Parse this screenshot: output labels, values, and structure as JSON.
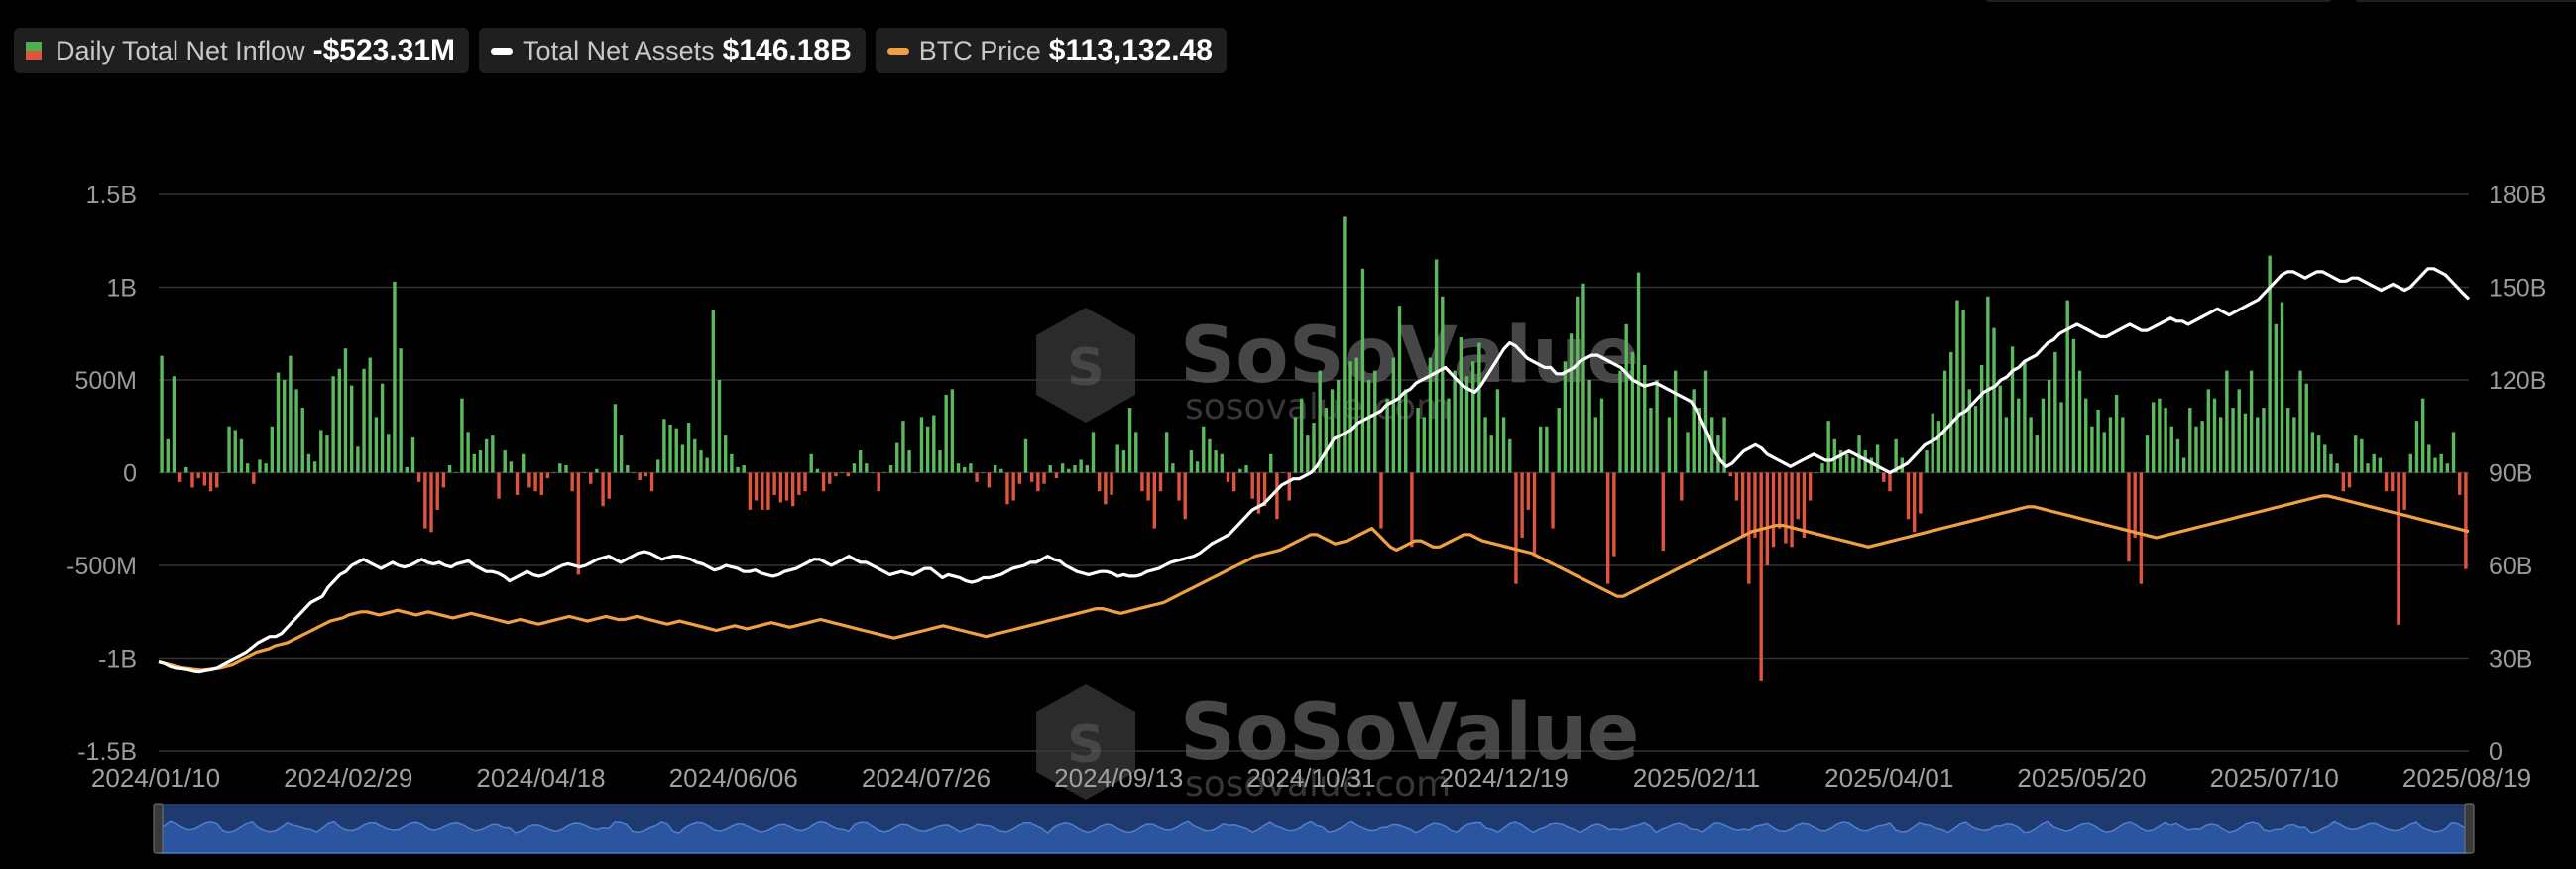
{
  "legend": {
    "items": [
      {
        "label": "Daily Total Net Inflow",
        "value": "-$523.31M"
      },
      {
        "label": "Total Net Assets",
        "value": "$146.18B"
      },
      {
        "label": "BTC Price",
        "value": "$113,132.48"
      }
    ]
  },
  "watermark": {
    "brand": "SoSoValue",
    "site": "sosovalue.com"
  },
  "colors": {
    "positive": "#5cb85c",
    "negative": "#e0533e",
    "assets_line": "#ffffff",
    "btc_line": "#f0a044",
    "grid": "#333333",
    "navigator": "#1f3a6e"
  },
  "chart_data": {
    "type": "bar",
    "left_axis": {
      "ticks": [
        "1.5B",
        "1B",
        "500M",
        "0",
        "-500M",
        "-1B",
        "-1.5B"
      ],
      "ylim": [
        -1.5,
        1.5
      ],
      "unit": "B"
    },
    "right_axis": {
      "ticks": [
        "180B",
        "150B",
        "120B",
        "90B",
        "60B",
        "30B",
        "0"
      ],
      "ylim": [
        0,
        180
      ],
      "unit": "B"
    },
    "x_ticks": [
      "2024/01/10",
      "2024/02/29",
      "2024/04/18",
      "2024/06/06",
      "2024/07/26",
      "2024/09/13",
      "2024/10/31",
      "2024/12/19",
      "2025/02/11",
      "2025/04/01",
      "2025/05/20",
      "2025/07/10",
      "2025/08/19"
    ],
    "series": [
      {
        "name": "Daily Total Net Inflow",
        "axis": "left",
        "kind": "bar",
        "values": [
          0.63,
          0.18,
          0.52,
          -0.05,
          0.03,
          -0.08,
          -0.03,
          -0.07,
          -0.1,
          -0.08,
          0.0,
          0.25,
          0.23,
          0.18,
          0.05,
          -0.06,
          0.07,
          0.05,
          0.25,
          0.54,
          0.5,
          0.63,
          0.45,
          0.35,
          0.1,
          0.06,
          0.23,
          0.2,
          0.52,
          0.56,
          0.67,
          0.47,
          0.14,
          0.56,
          0.62,
          0.3,
          0.48,
          0.21,
          1.03,
          0.67,
          0.03,
          0.19,
          -0.05,
          -0.3,
          -0.32,
          -0.2,
          -0.08,
          0.04,
          0.0,
          0.4,
          0.22,
          0.1,
          0.12,
          0.18,
          0.2,
          -0.14,
          0.12,
          0.06,
          -0.12,
          0.1,
          -0.08,
          -0.1,
          -0.12,
          -0.03,
          0.0,
          0.05,
          0.04,
          -0.1,
          -0.55,
          0.0,
          -0.06,
          0.02,
          -0.18,
          -0.14,
          0.37,
          0.2,
          0.04,
          0.0,
          -0.04,
          -0.02,
          -0.1,
          0.07,
          0.29,
          0.26,
          0.24,
          0.15,
          0.27,
          0.18,
          0.12,
          0.08,
          0.88,
          0.5,
          0.2,
          0.1,
          0.03,
          0.04,
          -0.2,
          -0.15,
          -0.2,
          -0.2,
          -0.12,
          -0.16,
          -0.15,
          -0.18,
          -0.12,
          -0.1,
          0.1,
          0.02,
          -0.1,
          -0.06,
          -0.02,
          0.0,
          -0.02,
          0.05,
          0.12,
          0.05,
          0.0,
          -0.1,
          0.0,
          0.04,
          0.16,
          0.28,
          0.12,
          0.0,
          0.3,
          0.25,
          0.31,
          0.12,
          0.42,
          0.45,
          0.05,
          0.03,
          0.05,
          -0.05,
          0.0,
          -0.08,
          0.04,
          0.02,
          -0.17,
          -0.15,
          -0.06,
          0.18,
          -0.05,
          -0.1,
          -0.06,
          0.04,
          -0.03,
          0.05,
          0.02,
          0.04,
          0.07,
          0.04,
          0.22,
          -0.1,
          -0.17,
          -0.12,
          0.15,
          0.12,
          0.35,
          0.22,
          -0.1,
          -0.15,
          -0.3,
          -0.1,
          0.22,
          0.05,
          -0.15,
          -0.25,
          0.12,
          0.06,
          0.25,
          0.18,
          0.12,
          0.1,
          -0.05,
          -0.1,
          0.02,
          0.04,
          -0.14,
          -0.22,
          -0.18,
          0.1,
          -0.25,
          0.0,
          -0.15,
          0.3,
          0.4,
          0.2,
          0.27,
          0.55,
          0.35,
          0.45,
          0.5,
          1.38,
          0.6,
          0.62,
          1.1,
          0.5,
          0.55,
          -0.3,
          0.4,
          0.62,
          0.9,
          0.45,
          -0.4,
          0.35,
          0.3,
          0.62,
          1.15,
          0.95,
          0.4,
          0.55,
          0.73,
          0.52,
          0.6,
          0.7,
          0.3,
          0.2,
          0.45,
          0.3,
          0.18,
          -0.6,
          -0.35,
          -0.2,
          -0.45,
          0.25,
          0.25,
          -0.3,
          0.35,
          0.6,
          0.75,
          0.95,
          1.02,
          0.5,
          0.3,
          0.4,
          -0.6,
          -0.45,
          0.55,
          0.8,
          0.65,
          1.08,
          0.58,
          0.35,
          0.5,
          -0.42,
          0.3,
          0.55,
          -0.15,
          0.22,
          0.45,
          0.35,
          0.55,
          0.3,
          0.2,
          0.3,
          -0.02,
          -0.15,
          -0.35,
          -0.6,
          -0.35,
          -1.12,
          -0.5,
          -0.4,
          -0.3,
          -0.38,
          -0.4,
          -0.25,
          -0.35,
          -0.15,
          0.0,
          0.05,
          0.28,
          0.18,
          0.12,
          0.1,
          0.08,
          0.2,
          0.12,
          0.08,
          0.15,
          -0.05,
          -0.1,
          0.18,
          0.08,
          -0.25,
          -0.32,
          -0.22,
          0.12,
          0.32,
          0.28,
          0.55,
          0.65,
          0.93,
          0.88,
          0.45,
          0.36,
          0.58,
          0.95,
          0.78,
          0.47,
          0.3,
          0.68,
          0.4,
          0.6,
          0.3,
          0.2,
          0.4,
          0.5,
          0.65,
          0.38,
          0.93,
          0.72,
          0.55,
          0.4,
          0.25,
          0.34,
          0.22,
          0.3,
          0.42,
          0.3,
          -0.48,
          -0.35,
          -0.6,
          0.2,
          0.38,
          0.4,
          0.35,
          0.25,
          0.18,
          0.08,
          0.35,
          0.25,
          0.28,
          0.45,
          0.4,
          0.3,
          0.55,
          0.35,
          0.45,
          0.32,
          0.55,
          0.3,
          0.35,
          1.17,
          0.8,
          0.92,
          0.35,
          0.3,
          0.55,
          0.48,
          0.22,
          0.2,
          0.15,
          0.1,
          0.05,
          -0.1,
          -0.08,
          0.2,
          0.18,
          0.05,
          0.1,
          0.08,
          -0.1,
          -0.1,
          -0.82,
          -0.2,
          0.1,
          0.28,
          0.4,
          0.15,
          0.08,
          0.1,
          0.05,
          0.22,
          -0.12,
          -0.52
        ]
      },
      {
        "name": "Total Net Assets",
        "axis": "right",
        "kind": "line",
        "values": [
          29,
          28.5,
          27.5,
          27,
          26.8,
          26.5,
          26,
          25.8,
          26.2,
          26.5,
          27,
          28,
          29,
          30,
          31,
          32,
          33.5,
          35,
          36,
          37,
          37,
          38,
          40,
          42,
          44,
          46,
          48,
          49,
          50,
          53,
          55,
          57,
          58,
          60,
          61,
          62,
          61,
          60,
          59,
          60,
          61,
          60,
          59.5,
          60,
          61,
          62,
          61,
          60.5,
          61,
          60,
          59.5,
          60.5,
          61,
          61.5,
          60,
          59,
          58,
          58,
          57.5,
          56.5,
          55,
          56,
          57,
          58,
          57,
          56.5,
          57,
          58,
          59,
          60,
          60.5,
          60,
          59.5,
          60,
          61,
          62,
          62.5,
          63,
          62,
          61,
          62,
          63,
          64,
          64.5,
          64,
          63,
          62,
          62.5,
          63,
          63,
          62.5,
          62,
          61,
          60.5,
          59.5,
          58.5,
          59,
          60,
          59.5,
          59,
          58,
          58,
          58.5,
          57.5,
          57,
          56.5,
          57,
          58,
          58.5,
          59,
          60,
          61,
          62,
          62,
          61,
          60,
          61,
          62,
          63,
          62,
          61,
          61,
          60,
          59,
          58,
          57,
          57.5,
          58,
          57.5,
          57,
          58,
          59,
          59,
          57.5,
          56,
          57,
          56.5,
          56,
          55,
          54.5,
          55,
          56,
          56,
          56.5,
          57,
          58,
          59,
          59.5,
          60,
          61,
          61,
          62,
          63,
          62,
          61.5,
          60,
          59,
          58,
          57.5,
          57,
          57.5,
          58,
          58,
          57.5,
          56.5,
          57,
          56.5,
          56.5,
          57,
          58,
          58.5,
          59,
          60,
          61,
          61.5,
          62,
          62.5,
          63,
          64,
          65.5,
          67,
          68,
          69,
          70,
          72,
          74,
          76,
          78,
          79,
          80,
          82,
          84,
          86,
          87,
          88,
          88,
          89,
          90,
          92,
          95,
          98,
          101,
          102,
          103,
          104,
          106,
          107,
          108,
          109,
          110,
          112,
          113,
          114,
          116,
          117,
          119,
          120,
          121,
          122,
          123,
          124,
          122,
          120,
          118,
          117,
          116,
          118,
          121,
          124,
          127,
          130,
          132,
          131,
          129,
          127,
          126,
          125,
          124,
          124,
          122,
          122,
          123,
          124,
          126,
          127,
          128,
          128,
          127,
          126,
          125,
          124,
          122,
          120,
          119,
          118,
          118.5,
          119,
          118,
          117,
          116,
          115,
          114,
          113,
          110,
          106,
          102,
          97,
          94,
          92,
          93,
          95,
          97,
          98,
          99,
          98,
          96,
          95,
          94,
          93,
          92,
          93,
          94,
          95,
          96,
          95,
          94,
          94,
          95,
          96,
          97,
          96,
          95,
          94,
          93,
          92,
          91,
          90,
          91,
          92,
          93,
          95,
          97,
          99,
          100,
          101,
          103,
          105,
          107,
          109,
          110,
          112,
          114,
          116,
          117,
          118,
          120,
          121,
          123,
          124,
          126,
          127,
          128,
          130,
          132,
          133,
          135,
          136,
          137,
          138,
          137,
          136,
          135,
          134,
          134,
          135,
          136,
          137,
          138,
          137,
          136,
          136,
          137,
          138,
          139,
          140,
          139,
          139,
          138,
          139,
          140,
          141,
          142,
          143,
          142,
          141,
          142,
          143,
          144,
          145,
          146,
          148,
          150,
          152,
          154,
          155,
          155,
          154,
          153,
          154,
          155,
          155,
          154,
          153,
          152,
          152,
          153,
          153,
          152,
          151,
          150,
          149,
          150,
          151,
          150,
          149,
          150,
          152,
          154,
          156,
          156,
          155,
          154,
          152,
          150,
          148,
          146.18
        ]
      },
      {
        "name": "BTC Price",
        "axis": "right",
        "kind": "line",
        "values": [
          29,
          28.5,
          28,
          27.5,
          27,
          26.8,
          26.5,
          26.3,
          26.5,
          26.8,
          27,
          27.5,
          28,
          29,
          30,
          31,
          32,
          32.5,
          33,
          34,
          34.5,
          35,
          36,
          37,
          38,
          39,
          40,
          41,
          42,
          42.5,
          43,
          44,
          44.5,
          45,
          45,
          44.5,
          44,
          44.5,
          45,
          45.5,
          45,
          44.5,
          44,
          44.5,
          45,
          44.5,
          44,
          43.5,
          43,
          43.5,
          44,
          44.5,
          44,
          43.5,
          43,
          42.5,
          42,
          41.5,
          42,
          42.5,
          42,
          41.5,
          41,
          41.5,
          42,
          42.5,
          43,
          43.5,
          43,
          42.5,
          42,
          42.5,
          43,
          43.5,
          43,
          42.5,
          42.5,
          43,
          43.5,
          43,
          42.5,
          42,
          41.5,
          41,
          41.5,
          42,
          41.5,
          41,
          40.5,
          40,
          39.5,
          39,
          39.5,
          40,
          40.5,
          40,
          39.5,
          40,
          40.5,
          41,
          41.5,
          41,
          40.5,
          40,
          40.5,
          41,
          41.5,
          42,
          42.5,
          42,
          41.5,
          41,
          40.5,
          40,
          39.5,
          39,
          38.5,
          38,
          37.5,
          37,
          36.5,
          37,
          37.5,
          38,
          38.5,
          39,
          39.5,
          40,
          40.5,
          40,
          39.5,
          39,
          38.5,
          38,
          37.5,
          37,
          37.5,
          38,
          38.5,
          39,
          39.5,
          40,
          40.5,
          41,
          41.5,
          42,
          42.5,
          43,
          43.5,
          44,
          44.5,
          45,
          45.5,
          46,
          46,
          45.5,
          45,
          44.5,
          45,
          45.5,
          46,
          46.5,
          47,
          47.5,
          48,
          49,
          50,
          51,
          52,
          53,
          54,
          55,
          56,
          57,
          58,
          59,
          60,
          61,
          62,
          63,
          63.5,
          64,
          64.5,
          65,
          66,
          67,
          68,
          69,
          70,
          70,
          69,
          68,
          67,
          67.5,
          68,
          69,
          70,
          71,
          72,
          70,
          68,
          66,
          65,
          66,
          67,
          68,
          68,
          67,
          66,
          66,
          67,
          68,
          69,
          70,
          70,
          69,
          68,
          67.5,
          67,
          66.5,
          66,
          65.5,
          65,
          64.5,
          64,
          63,
          62,
          61,
          60,
          59,
          58,
          57,
          56,
          55,
          54,
          53,
          52,
          51,
          50,
          50,
          51,
          52,
          53,
          54,
          55,
          56,
          57,
          58,
          59,
          60,
          61,
          62,
          63,
          64,
          65,
          66,
          67,
          68,
          69,
          70,
          71,
          71.5,
          72,
          72.5,
          73,
          73,
          72.5,
          72,
          71.5,
          71,
          70.5,
          70,
          69.5,
          69,
          68.5,
          68,
          67.5,
          67,
          66.5,
          66,
          66.5,
          67,
          67.5,
          68,
          68.5,
          69,
          69.5,
          70,
          70.5,
          71,
          71.5,
          72,
          72.5,
          73,
          73.5,
          74,
          74.5,
          75,
          75.5,
          76,
          76.5,
          77,
          77.5,
          78,
          78.5,
          79,
          79,
          78.5,
          78,
          77.5,
          77,
          76.5,
          76,
          75.5,
          75,
          74.5,
          74,
          73.5,
          73,
          72.5,
          72,
          71.5,
          71,
          70.5,
          70,
          69.5,
          69,
          69.5,
          70,
          70.5,
          71,
          71.5,
          72,
          72.5,
          73,
          73.5,
          74,
          74.5,
          75,
          75.5,
          76,
          76.5,
          77,
          77.5,
          78,
          78.5,
          79,
          79.5,
          80,
          80.5,
          81,
          81.5,
          82,
          82.5,
          82.5,
          82,
          81.5,
          81,
          80.5,
          80,
          79.5,
          79,
          78.5,
          78,
          77.5,
          77,
          76.5,
          76,
          75.5,
          75,
          74.5,
          74,
          73.5,
          73,
          72.5,
          72,
          71.5,
          71
        ]
      }
    ],
    "grid": true
  }
}
